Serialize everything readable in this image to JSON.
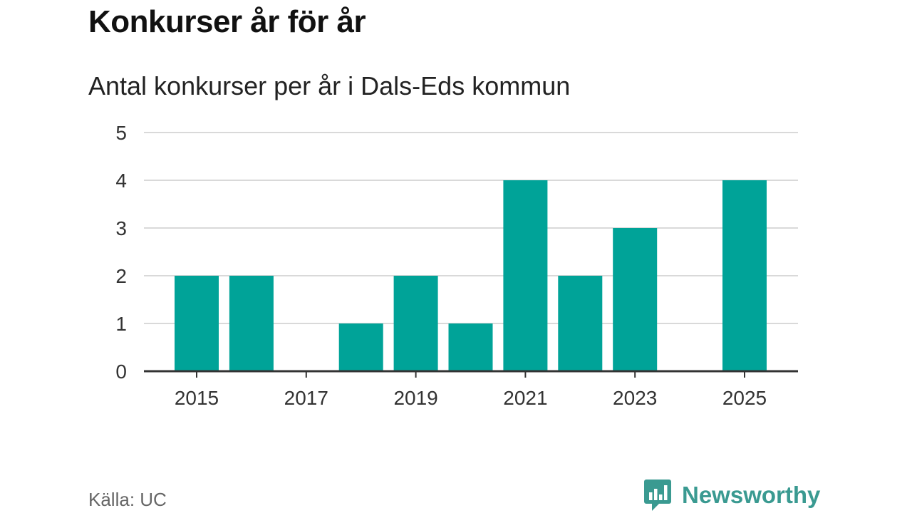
{
  "title": "Konkurser år för år",
  "subtitle": "Antal konkurser per år i Dals-Eds kommun",
  "source": "Källa: UC",
  "brand": {
    "name": "Newsworthy",
    "icon": "newsworthy-logo-icon",
    "color": "#3a9a91"
  },
  "colors": {
    "bar": "#00a398",
    "grid": "#d9d9d9",
    "axis": "#333333"
  },
  "chart_data": {
    "type": "bar",
    "categories": [
      "2015",
      "2016",
      "2017",
      "2018",
      "2019",
      "2020",
      "2021",
      "2022",
      "2023",
      "2024",
      "2025"
    ],
    "values": [
      2,
      2,
      0,
      1,
      2,
      1,
      4,
      2,
      3,
      0,
      4
    ],
    "x_tick_labels": [
      "2015",
      "2017",
      "2019",
      "2021",
      "2023",
      "2025"
    ],
    "y_ticks": [
      0,
      1,
      2,
      3,
      4,
      5
    ],
    "ylim": [
      0,
      5
    ],
    "grid": true,
    "legend": "none"
  }
}
